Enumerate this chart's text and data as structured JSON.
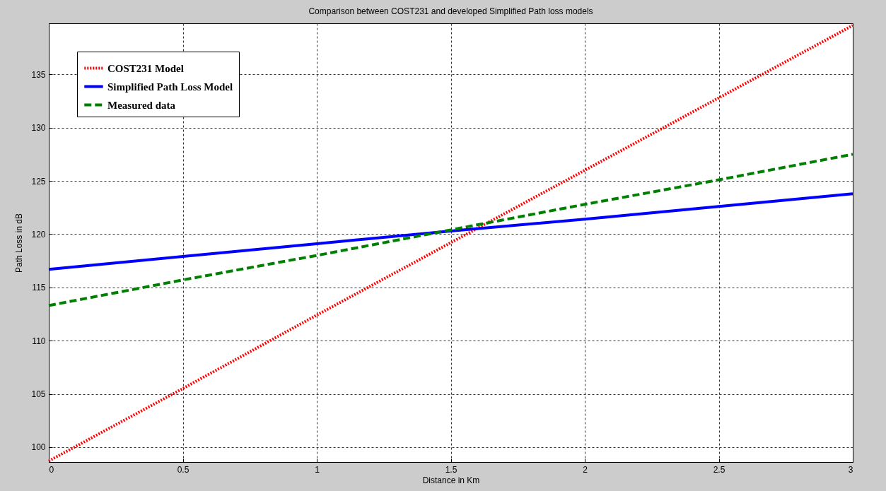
{
  "chart_data": {
    "type": "line",
    "title": "Comparison between COST231 and developed Simplified Path loss models",
    "xlabel": "Distance in Km",
    "ylabel": "Path Loss in dB",
    "x": [
      0,
      0.5,
      1,
      1.5,
      2,
      2.5,
      3
    ],
    "series": [
      {
        "name": "COST231 Model",
        "color": "#ff0000",
        "line_style": "dotted",
        "values": [
          98.7,
          105.5,
          112.4,
          119.2,
          126.0,
          132.8,
          139.6
        ]
      },
      {
        "name": "Simplified Path Loss Model",
        "color": "#0000ff",
        "line_style": "solid",
        "values": [
          116.7,
          117.9,
          119.1,
          120.3,
          121.4,
          122.6,
          123.8
        ]
      },
      {
        "name": "Measured data",
        "color": "#008000",
        "line_style": "dashed",
        "values": [
          113.3,
          115.7,
          118.0,
          120.4,
          122.8,
          125.1,
          127.5
        ]
      }
    ],
    "xlim": [
      0,
      3
    ],
    "xticks": [
      0,
      0.5,
      1,
      1.5,
      2,
      2.5,
      3
    ],
    "ylim": [
      98.6,
      139.8
    ],
    "yticks": [
      100,
      105,
      110,
      115,
      120,
      125,
      130,
      135
    ],
    "grid": true,
    "legend": "top left",
    "marker": "none"
  }
}
